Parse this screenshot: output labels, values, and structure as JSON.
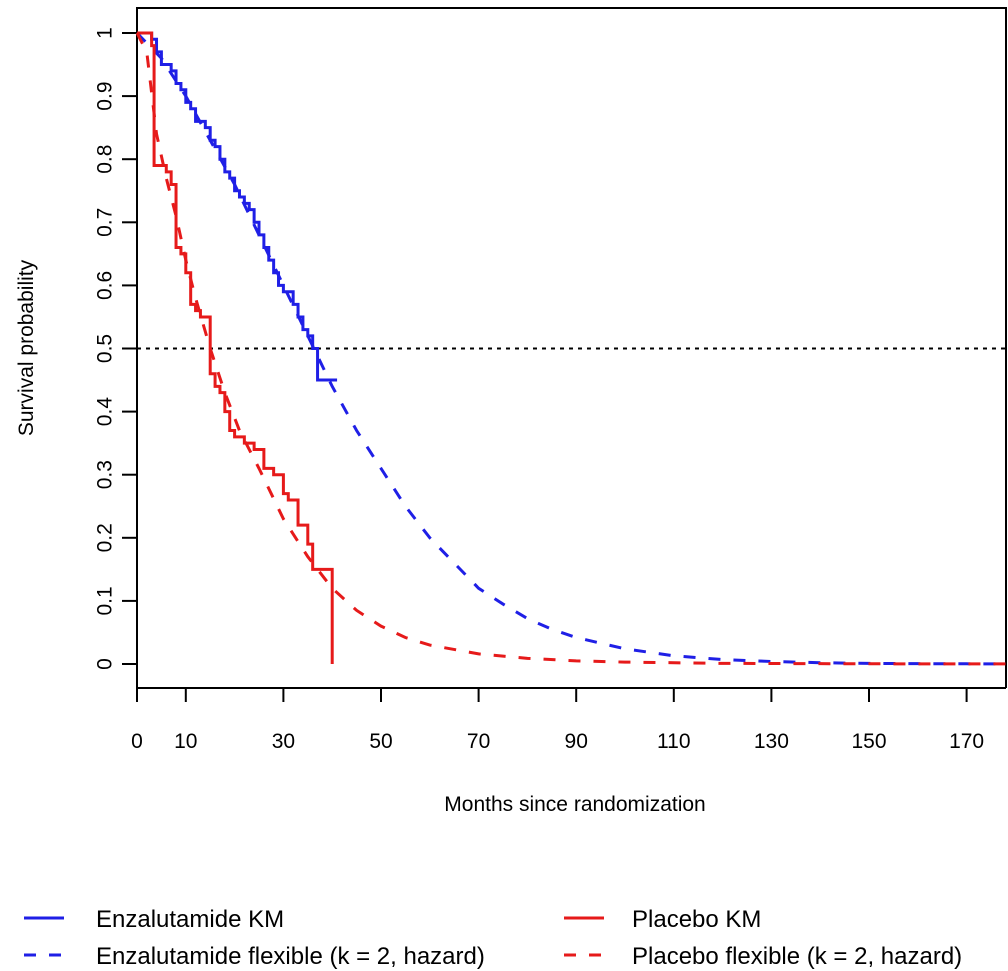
{
  "chart_data": {
    "type": "line",
    "title": "",
    "xlabel": "Months since randomization",
    "ylabel": "Survival probability",
    "xlim": [
      0,
      180
    ],
    "ylim": [
      0,
      1
    ],
    "x_ticks": [
      0,
      10,
      30,
      50,
      70,
      90,
      110,
      130,
      150,
      170
    ],
    "y_ticks": [
      0,
      0.1,
      0.2,
      0.3,
      0.4,
      0.5,
      0.6,
      0.7,
      0.8,
      0.9,
      1
    ],
    "reference_line": {
      "y": 0.5,
      "style": "dotted"
    },
    "grid": false,
    "legend_position": "bottom",
    "colors": {
      "enzalutamide": "#1f1fe6",
      "placebo": "#e61a1a"
    },
    "series": [
      {
        "name": "Enzalutamide KM",
        "style": "step",
        "color": "#1f1fe6",
        "x": [
          0,
          2,
          3,
          4,
          5,
          6,
          7,
          8,
          9,
          10,
          11,
          12,
          13,
          14,
          15,
          16,
          17,
          18,
          19,
          20,
          21,
          22,
          23,
          24,
          25,
          26,
          27,
          28,
          29,
          30,
          31,
          32,
          33,
          34,
          35,
          36,
          37,
          38,
          41
        ],
        "y": [
          1,
          1,
          0.99,
          0.97,
          0.95,
          0.95,
          0.94,
          0.92,
          0.91,
          0.89,
          0.88,
          0.86,
          0.86,
          0.85,
          0.83,
          0.82,
          0.8,
          0.78,
          0.77,
          0.75,
          0.74,
          0.73,
          0.72,
          0.7,
          0.68,
          0.66,
          0.64,
          0.62,
          0.6,
          0.59,
          0.59,
          0.57,
          0.55,
          0.53,
          0.52,
          0.5,
          0.45,
          0.45,
          0.45
        ]
      },
      {
        "name": "Enzalutamide flexible (k = 2, hazard)",
        "style": "dashed",
        "color": "#1f1fe6",
        "x": [
          0,
          5,
          10,
          15,
          20,
          25,
          30,
          35,
          40,
          45,
          50,
          55,
          60,
          65,
          70,
          75,
          80,
          85,
          90,
          100,
          110,
          120,
          130,
          140,
          150,
          160,
          170,
          180
        ],
        "y": [
          1,
          0.96,
          0.9,
          0.83,
          0.76,
          0.68,
          0.6,
          0.52,
          0.44,
          0.37,
          0.31,
          0.25,
          0.2,
          0.16,
          0.12,
          0.095,
          0.072,
          0.055,
          0.042,
          0.024,
          0.013,
          0.007,
          0.004,
          0.002,
          0.001,
          0.0005,
          0.0003,
          0.0002
        ]
      },
      {
        "name": "Placebo KM",
        "style": "step",
        "color": "#e61a1a",
        "x": [
          0,
          2,
          3,
          3.5,
          6,
          7,
          8,
          9,
          10,
          11,
          12,
          13,
          15,
          16,
          17,
          18,
          19,
          20,
          22,
          24,
          26,
          28,
          30,
          31,
          33,
          35,
          36,
          40,
          40
        ],
        "y": [
          1,
          1,
          0.98,
          0.79,
          0.78,
          0.76,
          0.66,
          0.65,
          0.62,
          0.57,
          0.56,
          0.55,
          0.46,
          0.44,
          0.43,
          0.4,
          0.37,
          0.36,
          0.35,
          0.34,
          0.31,
          0.3,
          0.27,
          0.26,
          0.22,
          0.19,
          0.15,
          0.15,
          0
        ]
      },
      {
        "name": "Placebo flexible (k = 2, hazard)",
        "style": "dashed",
        "color": "#e61a1a",
        "x": [
          0,
          2,
          4,
          6,
          8,
          10,
          12,
          15,
          18,
          21,
          25,
          30,
          35,
          40,
          45,
          50,
          55,
          60,
          70,
          80,
          90,
          100,
          120,
          140,
          160,
          180
        ],
        "y": [
          1,
          0.97,
          0.84,
          0.77,
          0.71,
          0.64,
          0.58,
          0.5,
          0.43,
          0.37,
          0.31,
          0.23,
          0.17,
          0.12,
          0.085,
          0.06,
          0.042,
          0.03,
          0.016,
          0.009,
          0.005,
          0.003,
          0.001,
          0.0005,
          0.0002,
          0.0001
        ]
      }
    ]
  }
}
